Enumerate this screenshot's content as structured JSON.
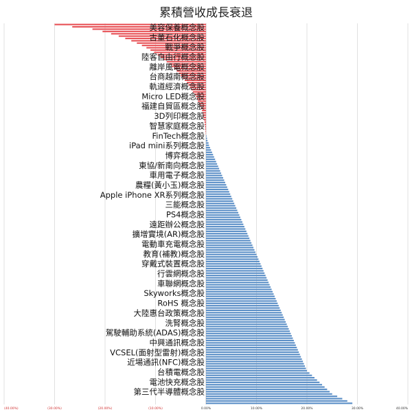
{
  "chart_data": {
    "type": "bar",
    "orientation": "horizontal",
    "title": "累積營收成長衰退",
    "xlabel": "",
    "ylabel": "",
    "xlim": [
      -0.4,
      0.4
    ],
    "xticks": [
      -0.4,
      -0.3,
      -0.2,
      -0.1,
      0,
      0.1,
      0.2,
      0.3,
      0.4
    ],
    "tick_labels": [
      "(40.00%)",
      "(30.00%)",
      "(20.00%)",
      "(10.00%)",
      "0.00%",
      "10.00%",
      "20.00%",
      "30.00%",
      "40.00%"
    ],
    "grid": true,
    "legend": "none",
    "colors": {
      "negative": "#e8555a",
      "positive": "#5b8fc7",
      "negative_tick": "#d03030",
      "positive_tick": "#333333",
      "grid": "#d9d9d9"
    },
    "labeled_categories": [
      "美容保養概念股",
      "古董石化概念股",
      "戰爭概念股",
      "陸客自由行概念股",
      "離岸風電概念股",
      "台商越南概念股",
      "軌道經濟概念股",
      "Micro LED概念股",
      "福建自貿區概念股",
      "3D列印概念股",
      "智慧家庭概念股",
      "FinTech概念股",
      "iPad mini系列概念股",
      "博弈概念股",
      "東協/新南向概念股",
      "車用電子概念股",
      "農糧(黃小玉)概念股",
      "Apple iPhone XR系列概念股",
      "三能概念股",
      "PS4概念股",
      "遠距辦公概念股",
      "擴增實境(AR)概念股",
      "電動車充電概念股",
      "教育(補教)概念股",
      "穿戴式裝置概念股",
      "行雲網概念股",
      "車聯網概念股",
      "Skyworks概念股",
      "RoHS 概念股",
      "大陸惠台政策概念股",
      "洗腎概念股",
      "駕駛輔助系統(ADAS)概念股",
      "中興通訊概念股",
      "VCSEL(面射型雷射)概念股",
      "近場通訊(NFC)概念股",
      "台積電概念股",
      "電池快充概念股",
      "第三代半導體概念股"
    ],
    "values": [
      -0.3,
      -0.265,
      -0.225,
      -0.205,
      -0.188,
      -0.173,
      -0.16,
      -0.148,
      -0.137,
      -0.127,
      -0.118,
      -0.11,
      -0.103,
      -0.096,
      -0.09,
      -0.084,
      -0.078,
      -0.073,
      -0.068,
      -0.063,
      -0.058,
      -0.054,
      -0.05,
      -0.046,
      -0.042,
      -0.038,
      -0.035,
      -0.032,
      -0.029,
      -0.026,
      -0.023,
      -0.02,
      -0.018,
      -0.016,
      -0.014,
      -0.012,
      -0.01,
      -0.008,
      -0.007,
      -0.006,
      -0.005,
      -0.004,
      -0.003,
      -0.0025,
      -0.002,
      -0.0015,
      -0.001,
      -0.0005,
      0.001,
      0.002,
      0.003,
      0.005,
      0.006,
      0.008,
      0.01,
      0.012,
      0.014,
      0.016,
      0.018,
      0.02,
      0.022,
      0.024,
      0.026,
      0.028,
      0.03,
      0.032,
      0.034,
      0.036,
      0.038,
      0.04,
      0.042,
      0.044,
      0.046,
      0.048,
      0.05,
      0.052,
      0.054,
      0.056,
      0.058,
      0.06,
      0.062,
      0.064,
      0.066,
      0.068,
      0.07,
      0.072,
      0.074,
      0.076,
      0.078,
      0.08,
      0.082,
      0.084,
      0.086,
      0.088,
      0.09,
      0.092,
      0.094,
      0.096,
      0.098,
      0.1,
      0.102,
      0.104,
      0.106,
      0.108,
      0.11,
      0.112,
      0.114,
      0.116,
      0.118,
      0.12,
      0.122,
      0.124,
      0.126,
      0.128,
      0.13,
      0.132,
      0.134,
      0.136,
      0.138,
      0.14,
      0.142,
      0.144,
      0.146,
      0.148,
      0.15,
      0.152,
      0.154,
      0.156,
      0.158,
      0.16,
      0.162,
      0.164,
      0.166,
      0.168,
      0.17,
      0.172,
      0.174,
      0.176,
      0.178,
      0.18,
      0.182,
      0.184,
      0.186,
      0.188,
      0.19,
      0.192,
      0.194,
      0.196,
      0.198,
      0.2,
      0.205,
      0.21,
      0.215,
      0.22,
      0.225,
      0.23,
      0.235,
      0.24,
      0.245,
      0.25,
      0.26,
      0.27,
      0.28,
      0.29
    ]
  }
}
